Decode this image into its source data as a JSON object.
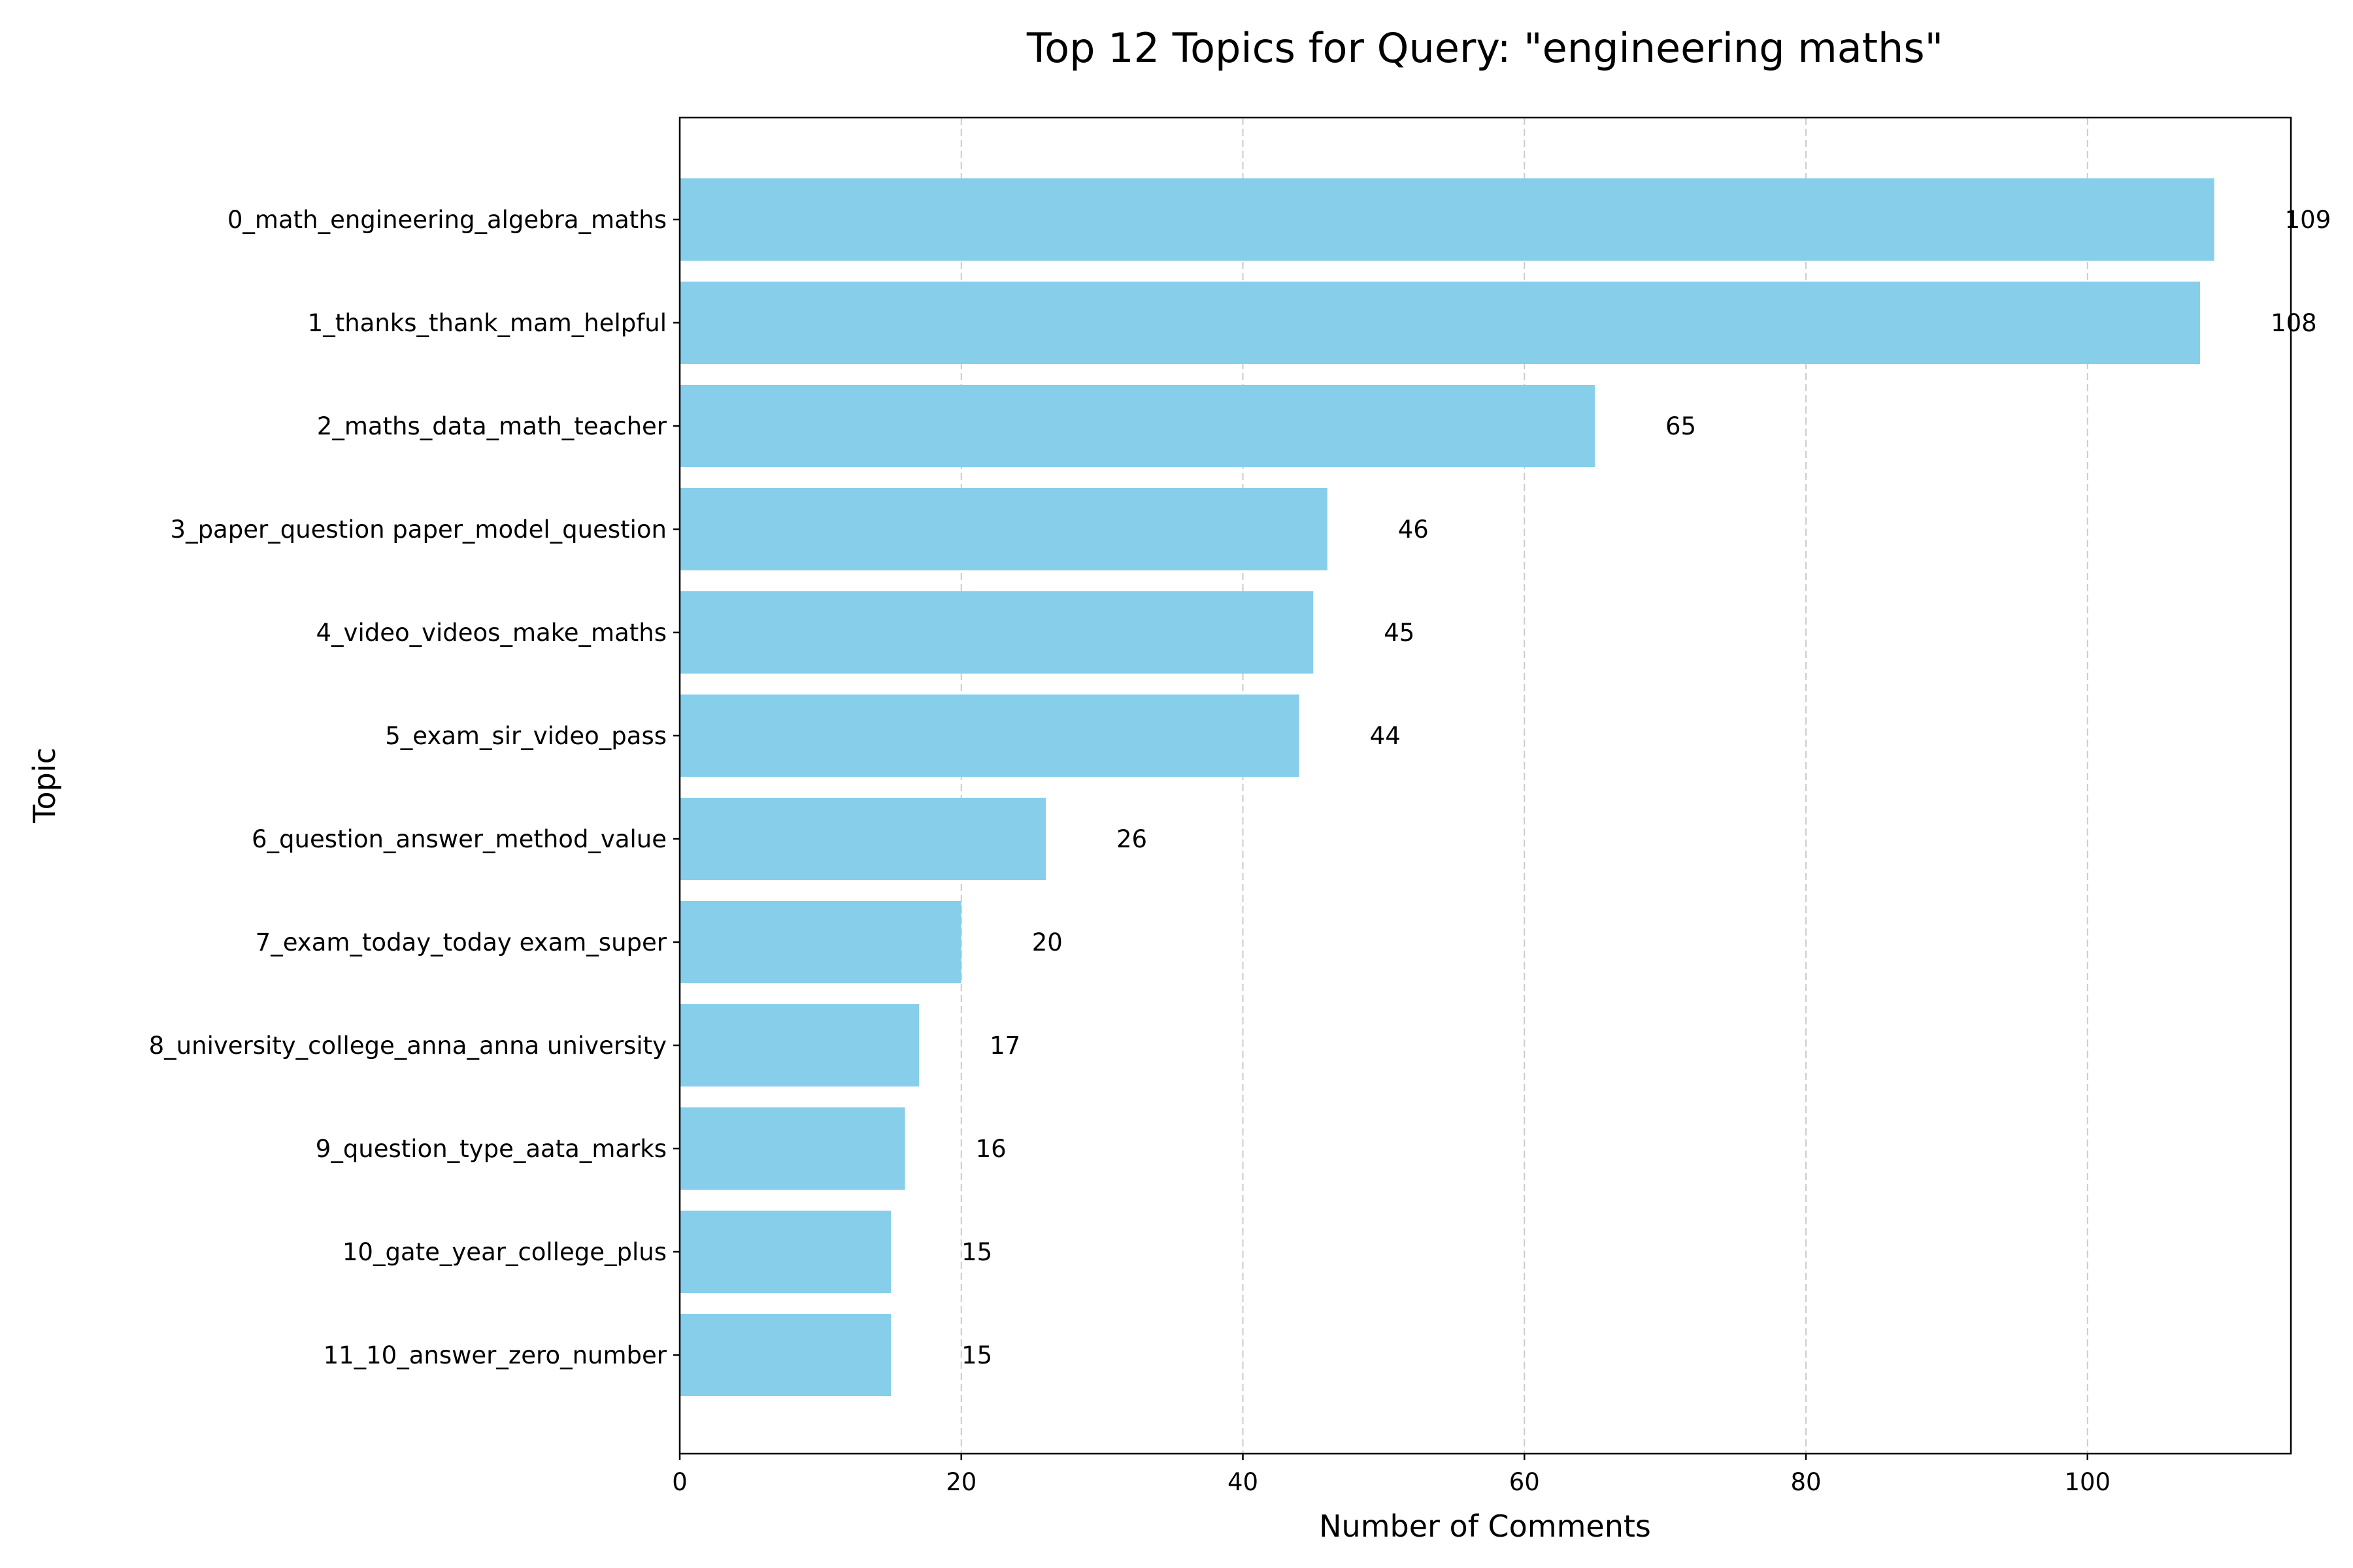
{
  "chart_data": {
    "type": "bar",
    "orientation": "horizontal",
    "title": "Top 12 Topics for Query: \"engineering maths\"",
    "xlabel": "Number of Comments",
    "ylabel": "Topic",
    "xlim": [
      0,
      114.45
    ],
    "xticks": [
      0,
      20,
      40,
      60,
      80,
      100
    ],
    "grid": "x-dashed",
    "bar_color": "#87ceeb",
    "categories": [
      "0_math_engineering_algebra_maths",
      "1_thanks_thank_mam_helpful",
      "2_maths_data_math_teacher",
      "3_paper_question paper_model_question",
      "4_video_videos_make_maths",
      "5_exam_sir_video_pass",
      "6_question_answer_method_value",
      "7_exam_today_today exam_super",
      "8_university_college_anna_anna university",
      "9_question_type_aata_marks",
      "10_gate_year_college_plus",
      "11_10_answer_zero_number"
    ],
    "values": [
      109,
      108,
      65,
      46,
      45,
      44,
      26,
      20,
      17,
      16,
      15,
      15
    ]
  }
}
